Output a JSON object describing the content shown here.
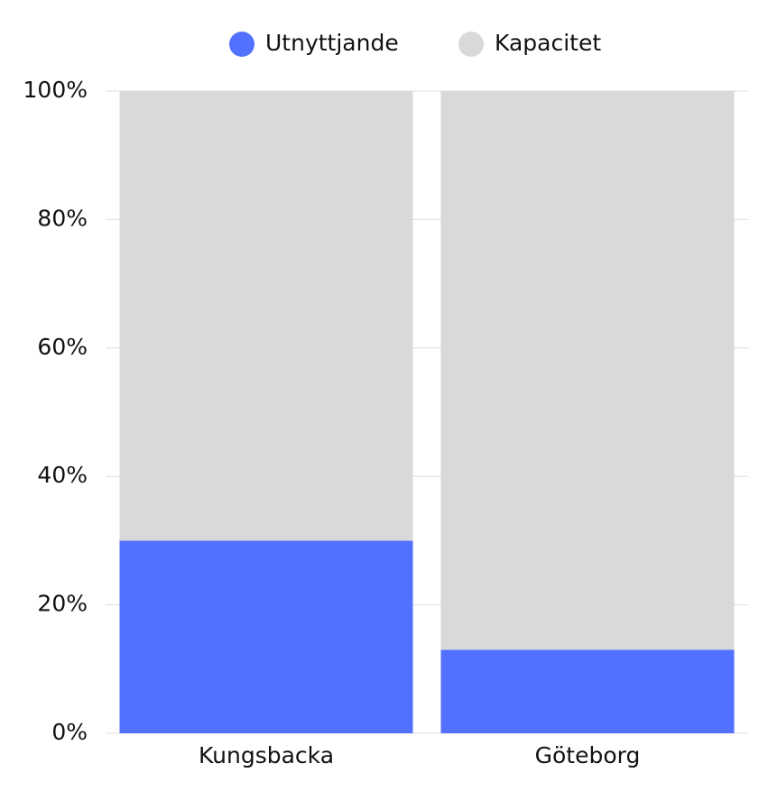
{
  "chart_data": {
    "type": "stacked-bar",
    "categories": [
      "Kungsbacka",
      "Göteborg"
    ],
    "series": [
      {
        "name": "Utnyttjande",
        "color": "#5271ff",
        "values": [
          30,
          13
        ]
      },
      {
        "name": "Kapacitet",
        "color": "#d9d9d9",
        "values": [
          70,
          87
        ]
      }
    ],
    "ylim": [
      0,
      100
    ],
    "yticks": [
      {
        "value": 0,
        "label": "0%"
      },
      {
        "value": 20,
        "label": "20%"
      },
      {
        "value": 40,
        "label": "40%"
      },
      {
        "value": 60,
        "label": "60%"
      },
      {
        "value": 80,
        "label": "80%"
      },
      {
        "value": 100,
        "label": "100%"
      }
    ],
    "grid": true,
    "legend": "top"
  }
}
